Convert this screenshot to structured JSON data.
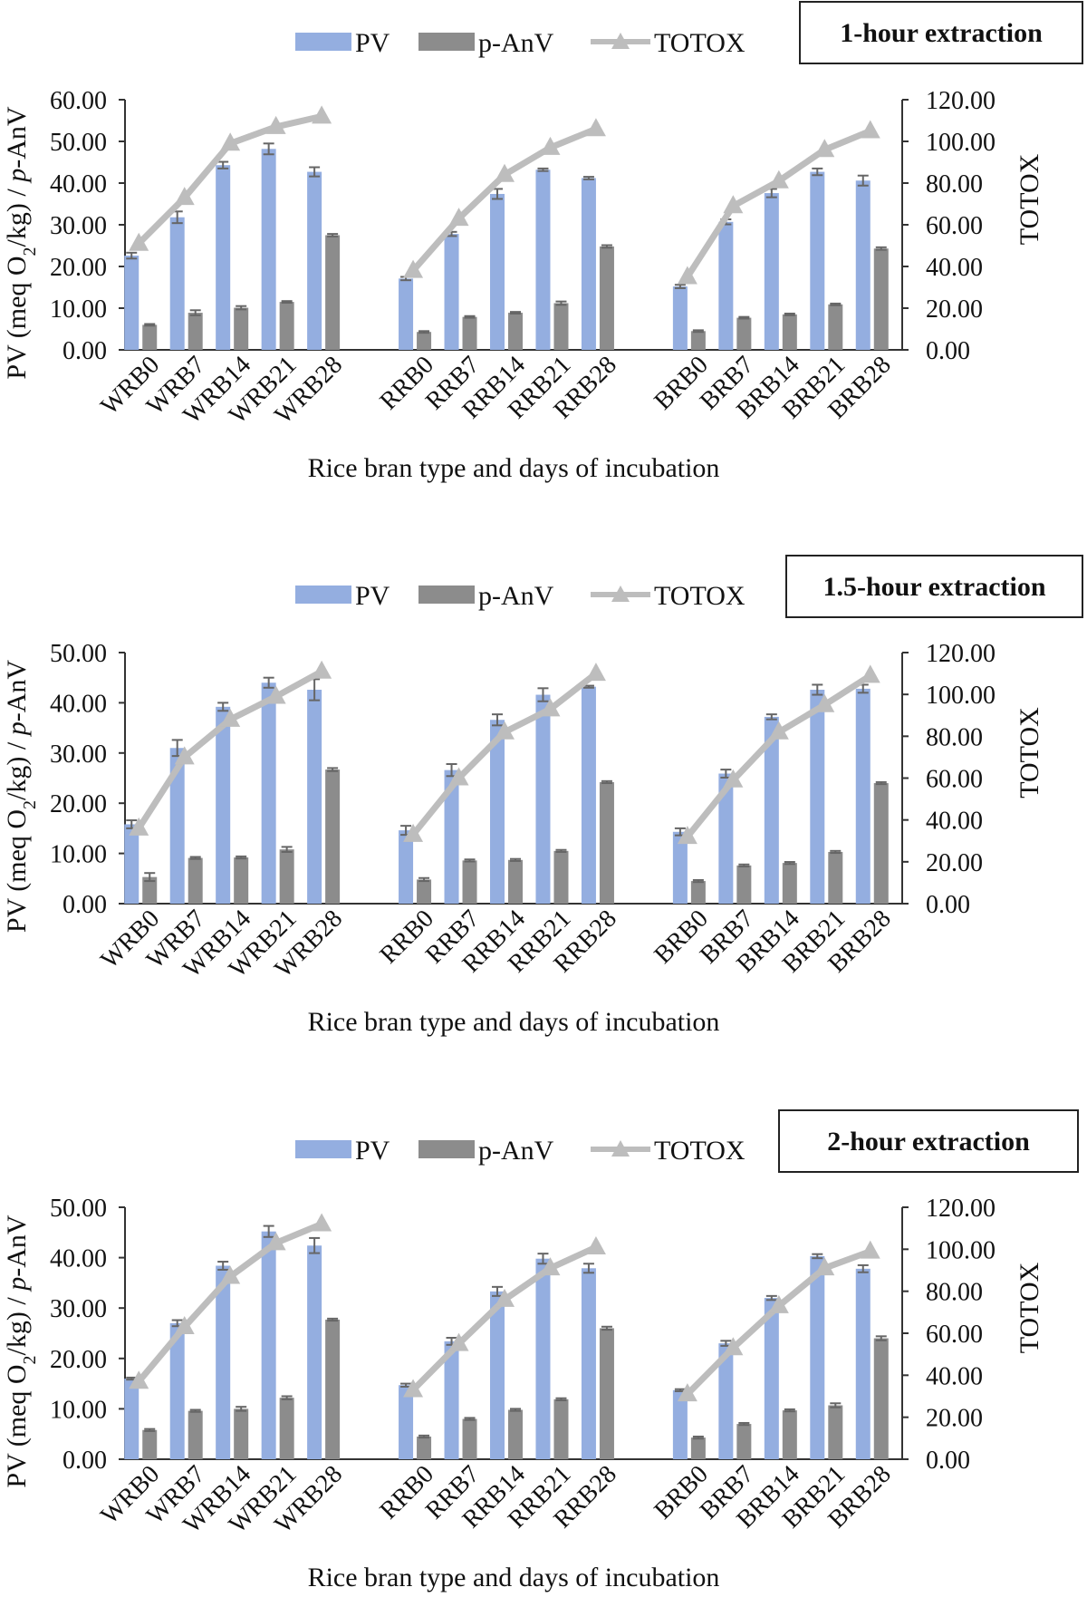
{
  "chart_data": [
    {
      "type": "bar",
      "title": "1-hour extraction",
      "categories": [
        "WRB0",
        "WRB7",
        "WRB14",
        "WRB21",
        "WRB28",
        "",
        "RRB0",
        "RRB7",
        "RRB14",
        "RRB21",
        "RRB28",
        "",
        "BRB0",
        "BRB7",
        "BRB14",
        "BRB21",
        "BRB28"
      ],
      "legend": [
        "PV",
        "p-AnV",
        "TOTOX"
      ],
      "xlabel": "Rice bran type and days of incubation",
      "ylabel_left_parts": [
        "PV (meq O",
        "2",
        "/kg) / ",
        "p",
        "-AnV"
      ],
      "ylabel_right": "TOTOX",
      "ylim_left": [
        0,
        60
      ],
      "ylim_right": [
        0,
        120
      ],
      "yticks_left": [
        "0.00",
        "10.00",
        "20.00",
        "30.00",
        "40.00",
        "50.00",
        "60.00"
      ],
      "yticks_right": [
        "0.00",
        "20.00",
        "40.00",
        "60.00",
        "80.00",
        "100.00",
        "120.00"
      ],
      "series": [
        {
          "name": "PV",
          "axis": "left",
          "values": [
            22.6,
            31.8,
            44.3,
            48.2,
            42.7,
            null,
            17.1,
            27.8,
            37.4,
            43.2,
            41.2,
            null,
            15.2,
            30.7,
            37.6,
            42.7,
            40.6
          ],
          "errors": [
            0.7,
            1.4,
            0.8,
            1.3,
            1.1,
            null,
            0.4,
            0.5,
            1.2,
            0.3,
            0.3,
            null,
            0.4,
            0.6,
            1.0,
            0.8,
            1.2
          ]
        },
        {
          "name": "p-AnV",
          "axis": "left",
          "values": [
            6.0,
            8.9,
            10.1,
            11.5,
            27.5,
            null,
            4.3,
            7.9,
            8.9,
            11.2,
            24.8,
            null,
            4.5,
            7.7,
            8.5,
            10.9,
            24.3
          ],
          "errors": [
            0.2,
            0.6,
            0.4,
            0.2,
            0.3,
            null,
            0.2,
            0.2,
            0.2,
            0.4,
            0.3,
            null,
            0.2,
            0.2,
            0.2,
            0.2,
            0.3
          ]
        },
        {
          "name": "TOTOX",
          "axis": "right",
          "type": "line",
          "values": [
            51,
            73,
            99,
            107,
            112,
            null,
            38,
            63,
            84,
            97,
            106,
            null,
            35,
            69,
            81,
            96,
            105
          ]
        }
      ]
    },
    {
      "type": "bar",
      "title": "1.5-hour extraction",
      "categories": [
        "WRB0",
        "WRB7",
        "WRB14",
        "WRB21",
        "WRB28",
        "",
        "RRB0",
        "RRB7",
        "RRB14",
        "RRB21",
        "RRB28",
        "",
        "BRB0",
        "BRB7",
        "BRB14",
        "BRB21",
        "BRB28"
      ],
      "legend": [
        "PV",
        "p-AnV",
        "TOTOX"
      ],
      "xlabel": "Rice bran type and days of incubation",
      "ylabel_left_parts": [
        "PV (meq O",
        "2",
        "/kg) / ",
        "p",
        "-AnV"
      ],
      "ylabel_right": "TOTOX",
      "ylim_left": [
        0,
        50
      ],
      "ylim_right": [
        0,
        120
      ],
      "yticks_left": [
        "0.00",
        "10.00",
        "20.00",
        "30.00",
        "40.00",
        "50.00"
      ],
      "yticks_right": [
        "0.00",
        "20.00",
        "40.00",
        "60.00",
        "80.00",
        "100.00",
        "120.00"
      ],
      "series": [
        {
          "name": "PV",
          "axis": "left",
          "values": [
            15.8,
            31.0,
            39.2,
            44.0,
            42.6,
            null,
            14.6,
            26.6,
            36.6,
            41.6,
            43.2,
            null,
            14.3,
            25.9,
            37.2,
            42.6,
            42.8
          ],
          "errors": [
            0.8,
            1.6,
            0.8,
            1.0,
            2.1,
            null,
            0.9,
            1.2,
            1.1,
            1.3,
            0.2,
            null,
            0.7,
            0.8,
            0.5,
            1.0,
            0.8
          ]
        },
        {
          "name": "p-AnV",
          "axis": "left",
          "values": [
            5.3,
            9.1,
            9.2,
            10.8,
            26.7,
            null,
            4.8,
            8.6,
            8.7,
            10.5,
            24.2,
            null,
            4.5,
            7.6,
            8.1,
            10.3,
            24.0
          ],
          "errors": [
            0.8,
            0.2,
            0.2,
            0.5,
            0.3,
            null,
            0.3,
            0.2,
            0.2,
            0.2,
            0.2,
            null,
            0.2,
            0.2,
            0.2,
            0.2,
            0.2
          ]
        },
        {
          "name": "TOTOX",
          "axis": "right",
          "type": "line",
          "values": [
            36,
            70,
            88,
            99,
            111,
            null,
            33,
            60,
            82,
            93,
            110,
            null,
            32,
            59,
            82,
            95,
            109
          ]
        }
      ]
    },
    {
      "type": "bar",
      "title": "2-hour extraction",
      "categories": [
        "WRB0",
        "WRB7",
        "WRB14",
        "WRB21",
        "WRB28",
        "",
        "RRB0",
        "RRB7",
        "RRB14",
        "RRB21",
        "RRB28",
        "",
        "BRB0",
        "BRB7",
        "BRB14",
        "BRB21",
        "BRB28"
      ],
      "legend": [
        "PV",
        "p-AnV",
        "TOTOX"
      ],
      "xlabel": "Rice bran type and days of incubation",
      "ylabel_left_parts": [
        "PV (meq O",
        "2",
        "/kg) / ",
        "p",
        "-AnV"
      ],
      "ylabel_right": "TOTOX",
      "ylim_left": [
        0,
        50
      ],
      "ylim_right": [
        0,
        120
      ],
      "yticks_left": [
        "0.00",
        "10.00",
        "20.00",
        "30.00",
        "40.00",
        "50.00"
      ],
      "yticks_right": [
        "0.00",
        "20.00",
        "40.00",
        "60.00",
        "80.00",
        "100.00",
        "120.00"
      ],
      "series": [
        {
          "name": "PV",
          "axis": "left",
          "values": [
            16.0,
            27.0,
            38.4,
            45.2,
            42.4,
            null,
            14.7,
            23.4,
            33.3,
            39.8,
            37.9,
            null,
            13.7,
            23.0,
            32.0,
            40.3,
            37.8
          ],
          "errors": [
            0.2,
            0.6,
            0.8,
            1.1,
            1.5,
            null,
            0.3,
            0.7,
            0.9,
            1.0,
            0.9,
            null,
            0.2,
            0.5,
            0.4,
            0.4,
            0.7
          ]
        },
        {
          "name": "p-AnV",
          "axis": "left",
          "values": [
            5.8,
            9.6,
            10.0,
            12.2,
            27.7,
            null,
            4.5,
            8.0,
            9.8,
            11.9,
            26.0,
            null,
            4.3,
            7.0,
            9.7,
            10.7,
            24.0
          ],
          "errors": [
            0.2,
            0.2,
            0.4,
            0.3,
            0.2,
            null,
            0.2,
            0.2,
            0.2,
            0.2,
            0.3,
            null,
            0.2,
            0.2,
            0.2,
            0.4,
            0.4
          ]
        },
        {
          "name": "TOTOX",
          "axis": "right",
          "type": "line",
          "values": [
            37,
            63,
            87,
            103,
            112,
            null,
            33,
            55,
            76,
            91,
            101,
            null,
            31,
            53,
            73,
            91,
            99
          ]
        }
      ]
    }
  ],
  "colors": {
    "pv": "#94aee0",
    "panv": "#8c8c8c",
    "totox": "#bdbdbd",
    "error": "#666666",
    "axis": "#333333"
  }
}
